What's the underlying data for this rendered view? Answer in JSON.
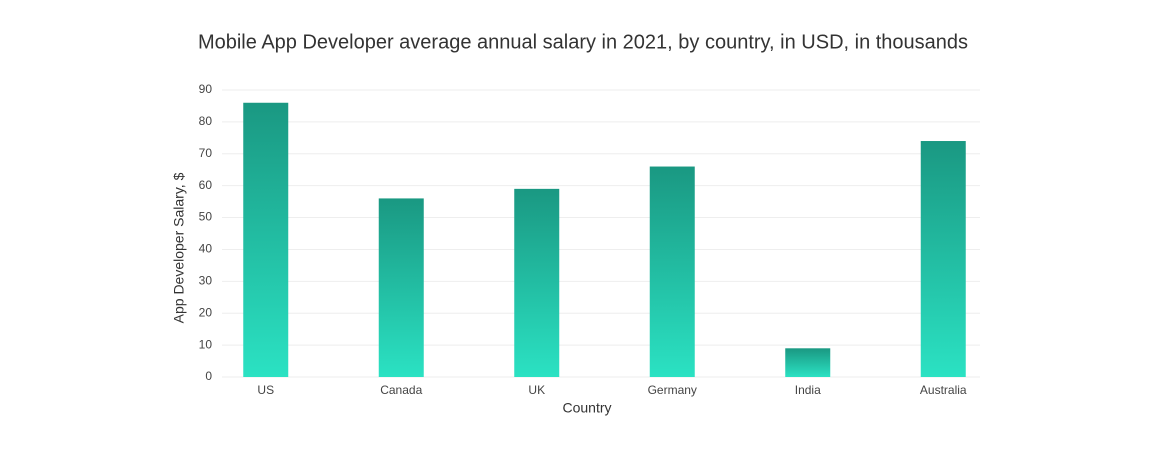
{
  "chart_data": {
    "type": "bar",
    "title": "Mobile App Developer average annual salary in 2021, by country, in USD, in thousands",
    "x_label": "Country",
    "y_label": "App Developer Salary, $",
    "categories": [
      "US",
      "Canada",
      "UK",
      "Germany",
      "India",
      "Australia"
    ],
    "values": [
      86,
      56,
      59,
      66,
      9,
      74
    ],
    "gradient": [
      "#1a9882",
      "#2be2c3"
    ],
    "ylim": [
      0,
      90
    ],
    "yticks": [
      0,
      10,
      20,
      30,
      40,
      50,
      60,
      70,
      80,
      90
    ],
    "grid": true
  }
}
